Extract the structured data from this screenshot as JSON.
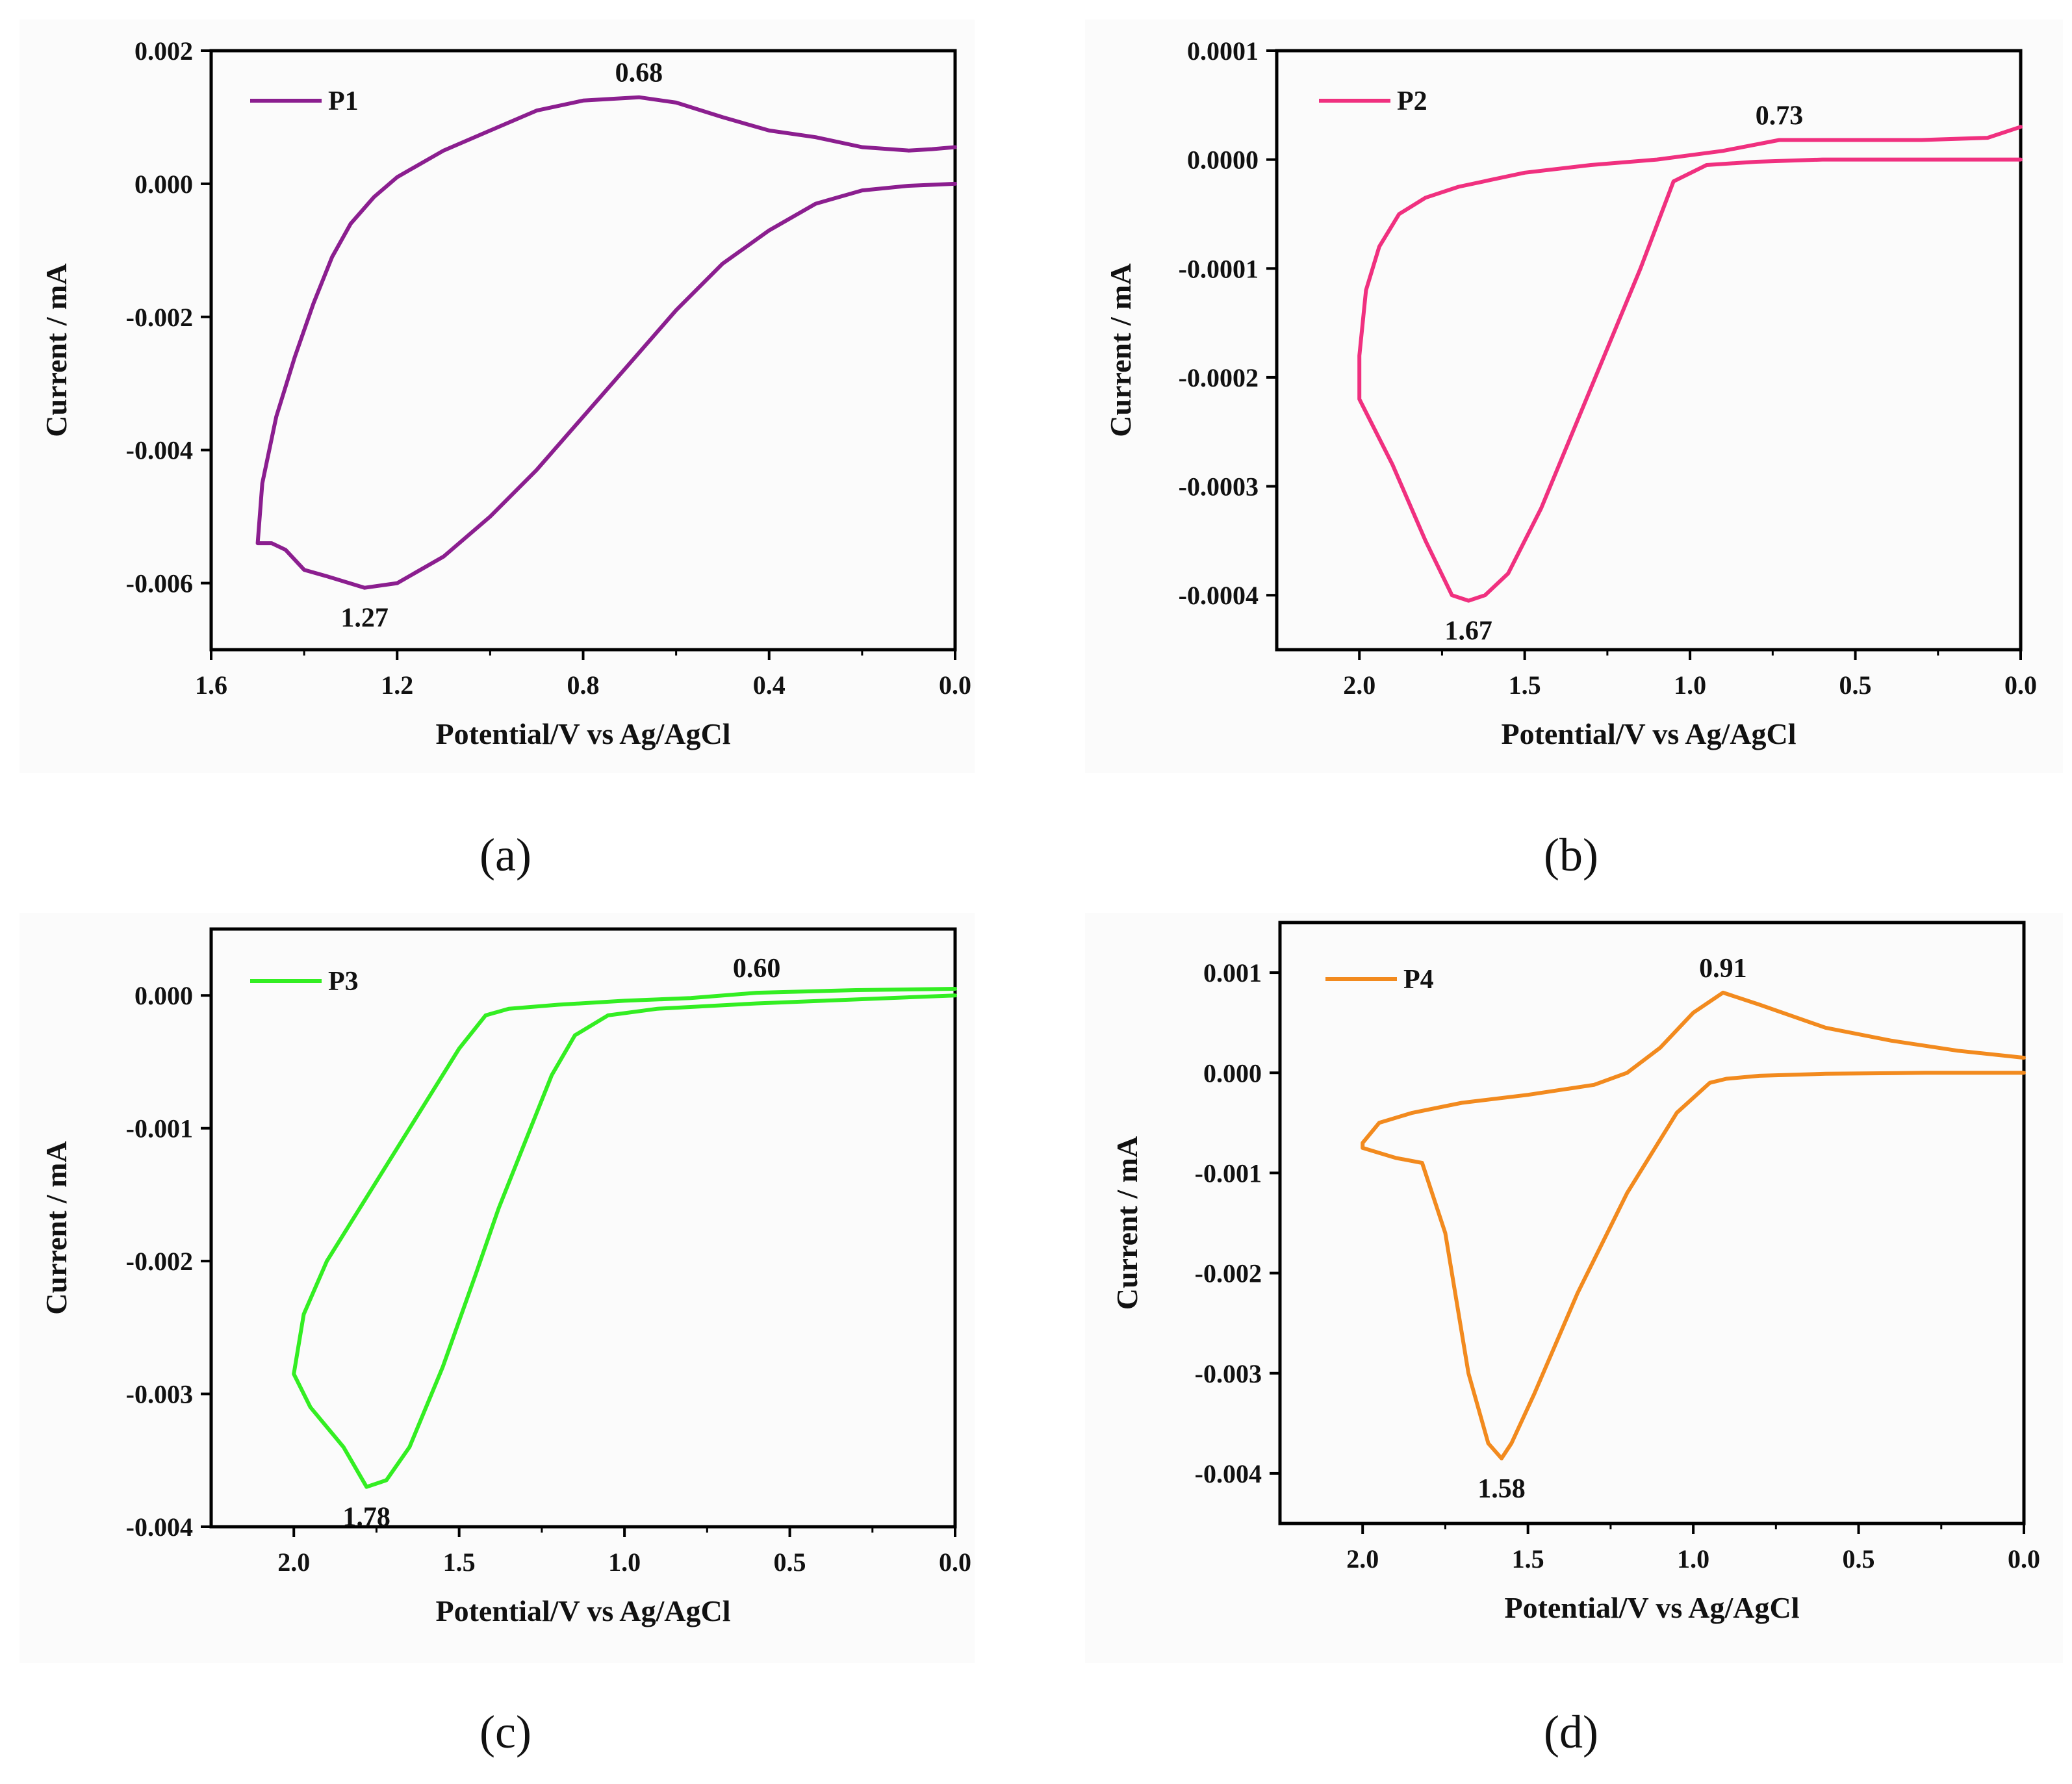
{
  "chart_data": [
    {
      "type": "line",
      "panel": "a",
      "caption": "(a)",
      "xlabel": "Potential/V vs Ag/AgCl",
      "ylabel": "Current / mA",
      "xlim": [
        1.6,
        0.0
      ],
      "ylim": [
        -0.007,
        0.002
      ],
      "x_ticks": [
        1.6,
        1.2,
        0.8,
        0.4,
        0.0
      ],
      "x_tick_labels": [
        "1.6",
        "1.2",
        "0.8",
        "0.4",
        "0.0"
      ],
      "y_ticks": [
        0.002,
        0.0,
        -0.002,
        -0.004,
        -0.006
      ],
      "y_tick_labels": [
        "0.002",
        "0.000",
        "-0.002",
        "-0.004",
        "-0.006"
      ],
      "legend": "P1",
      "legend_position": "top-left",
      "color": "#8b1e8f",
      "series": [
        {
          "name": "P1",
          "x": [
            0.0,
            0.1,
            0.2,
            0.3,
            0.4,
            0.5,
            0.6,
            0.7,
            0.8,
            0.9,
            1.0,
            1.1,
            1.2,
            1.27,
            1.35,
            1.4,
            1.44,
            1.47,
            1.5,
            1.49,
            1.46,
            1.42,
            1.38,
            1.34,
            1.3,
            1.25,
            1.2,
            1.1,
            1.0,
            0.9,
            0.8,
            0.68,
            0.6,
            0.5,
            0.4,
            0.3,
            0.2,
            0.1,
            0.05,
            0.0
          ],
          "y": [
            0.0,
            -3e-05,
            -0.0001,
            -0.0003,
            -0.0007,
            -0.0012,
            -0.0019,
            -0.0027,
            -0.0035,
            -0.0043,
            -0.005,
            -0.0056,
            -0.006,
            -0.00607,
            -0.0059,
            -0.0058,
            -0.0055,
            -0.0054,
            -0.0054,
            -0.0045,
            -0.0035,
            -0.0026,
            -0.0018,
            -0.0011,
            -0.0006,
            -0.0002,
            0.0001,
            0.0005,
            0.0008,
            0.0011,
            0.00125,
            0.0013,
            0.00122,
            0.001,
            0.0008,
            0.0007,
            0.00055,
            0.0005,
            0.00052,
            0.00055
          ]
        }
      ],
      "annotations": [
        {
          "text": "0.68",
          "x": 0.68,
          "y": 0.0013
        },
        {
          "text": "1.27",
          "x": 1.27,
          "y": -0.00607
        }
      ]
    },
    {
      "type": "line",
      "panel": "b",
      "caption": "(b)",
      "xlabel": "Potential/V vs Ag/AgCl",
      "ylabel": "Current / mA",
      "xlim": [
        2.25,
        0.0
      ],
      "ylim": [
        -0.00045,
        0.0001
      ],
      "x_ticks": [
        2.0,
        1.5,
        1.0,
        0.5,
        0.0
      ],
      "x_tick_labels": [
        "2.0",
        "1.5",
        "1.0",
        "0.5",
        "0.0"
      ],
      "y_ticks": [
        0.0001,
        0.0,
        -0.0001,
        -0.0002,
        -0.0003,
        -0.0004
      ],
      "y_tick_labels": [
        "0.0001",
        "0.0000",
        "-0.0001",
        "-0.0002",
        "-0.0003",
        "-0.0004"
      ],
      "legend": "P2",
      "legend_position": "top-left",
      "color": "#f0307f",
      "series": [
        {
          "name": "P2",
          "x": [
            0.0,
            0.3,
            0.6,
            0.8,
            0.95,
            1.05,
            1.15,
            1.3,
            1.45,
            1.55,
            1.62,
            1.67,
            1.72,
            1.8,
            1.9,
            2.0,
            2.0,
            1.98,
            1.94,
            1.88,
            1.8,
            1.7,
            1.5,
            1.3,
            1.1,
            0.9,
            0.73,
            0.5,
            0.3,
            0.1,
            0.0
          ],
          "y": [
            0.0,
            0.0,
            0.0,
            -2e-06,
            -5e-06,
            -2e-05,
            -0.0001,
            -0.00021,
            -0.00032,
            -0.00038,
            -0.0004,
            -0.000405,
            -0.0004,
            -0.00035,
            -0.00028,
            -0.00022,
            -0.00018,
            -0.00012,
            -8e-05,
            -5e-05,
            -3.5e-05,
            -2.5e-05,
            -1.2e-05,
            -5e-06,
            0.0,
            8e-06,
            1.8e-05,
            1.8e-05,
            1.8e-05,
            2e-05,
            3e-05
          ]
        }
      ],
      "annotations": [
        {
          "text": "0.73",
          "x": 0.73,
          "y": 1.8e-05
        },
        {
          "text": "1.67",
          "x": 1.67,
          "y": -0.000405
        }
      ]
    },
    {
      "type": "line",
      "panel": "c",
      "caption": "(c)",
      "xlabel": "Potential/V vs Ag/AgCl",
      "ylabel": "Current / mA",
      "xlim": [
        2.25,
        0.0
      ],
      "ylim": [
        -0.004,
        0.0005
      ],
      "x_ticks": [
        2.0,
        1.5,
        1.0,
        0.5,
        0.0
      ],
      "x_tick_labels": [
        "2.0",
        "1.5",
        "1.0",
        "0.5",
        "0.0"
      ],
      "y_ticks": [
        0.0,
        -0.001,
        -0.002,
        -0.003,
        -0.004
      ],
      "y_tick_labels": [
        "0.000",
        "-0.001",
        "-0.002",
        "-0.003",
        "-0.004"
      ],
      "legend": "P3",
      "legend_position": "top-left",
      "color": "#33ee22",
      "series": [
        {
          "name": "P3",
          "x": [
            0.0,
            0.3,
            0.6,
            0.9,
            1.05,
            1.15,
            1.22,
            1.3,
            1.38,
            1.45,
            1.55,
            1.65,
            1.72,
            1.78,
            1.85,
            1.95,
            2.0,
            1.97,
            1.9,
            1.8,
            1.7,
            1.6,
            1.5,
            1.42,
            1.35,
            1.2,
            1.0,
            0.8,
            0.6,
            0.3,
            0.0
          ],
          "y": [
            0.0,
            -3e-05,
            -6e-05,
            -0.0001,
            -0.00015,
            -0.0003,
            -0.0006,
            -0.0011,
            -0.0016,
            -0.0021,
            -0.0028,
            -0.0034,
            -0.00365,
            -0.0037,
            -0.0034,
            -0.0031,
            -0.00285,
            -0.0024,
            -0.002,
            -0.0016,
            -0.0012,
            -0.0008,
            -0.0004,
            -0.00015,
            -0.0001,
            -7e-05,
            -4e-05,
            -2e-05,
            2e-05,
            4e-05,
            5e-05
          ]
        }
      ],
      "annotations": [
        {
          "text": "0.60",
          "x": 0.6,
          "y": 2e-05
        },
        {
          "text": "1.78",
          "x": 1.78,
          "y": -0.0037
        }
      ]
    },
    {
      "type": "line",
      "panel": "d",
      "caption": "(d)",
      "xlabel": "Potential/V vs Ag/AgCl",
      "ylabel": "Current / mA",
      "xlim": [
        2.25,
        0.0
      ],
      "ylim": [
        -0.0045,
        0.0015
      ],
      "x_ticks": [
        2.0,
        1.5,
        1.0,
        0.5,
        0.0
      ],
      "x_tick_labels": [
        "2.0",
        "1.5",
        "1.0",
        "0.5",
        "0.0"
      ],
      "y_ticks": [
        0.001,
        0.0,
        -0.001,
        -0.002,
        -0.003,
        -0.004
      ],
      "y_tick_labels": [
        "0.001",
        "0.000",
        "-0.001",
        "-0.002",
        "-0.003",
        "-0.004"
      ],
      "legend": "P4",
      "legend_position": "top-left",
      "color": "#f28a1e",
      "series": [
        {
          "name": "P4",
          "x": [
            0.0,
            0.3,
            0.6,
            0.8,
            0.9,
            0.95,
            1.05,
            1.2,
            1.35,
            1.48,
            1.55,
            1.58,
            1.62,
            1.68,
            1.75,
            1.82,
            1.9,
            2.0,
            2.0,
            1.95,
            1.85,
            1.7,
            1.5,
            1.3,
            1.2,
            1.1,
            1.0,
            0.91,
            0.8,
            0.6,
            0.4,
            0.2,
            0.0
          ],
          "y": [
            0.0,
            0.0,
            -1e-05,
            -3e-05,
            -6e-05,
            -0.0001,
            -0.0004,
            -0.0012,
            -0.0022,
            -0.0032,
            -0.0037,
            -0.00385,
            -0.0037,
            -0.003,
            -0.0016,
            -0.0009,
            -0.00085,
            -0.00075,
            -0.0007,
            -0.0005,
            -0.0004,
            -0.0003,
            -0.00022,
            -0.00012,
            0.0,
            0.00025,
            0.0006,
            0.0008,
            0.00068,
            0.00045,
            0.00032,
            0.00022,
            0.00015
          ]
        }
      ],
      "annotations": [
        {
          "text": "0.91",
          "x": 0.91,
          "y": 0.0008
        },
        {
          "text": "1.58",
          "x": 1.58,
          "y": -0.00385
        }
      ]
    }
  ]
}
